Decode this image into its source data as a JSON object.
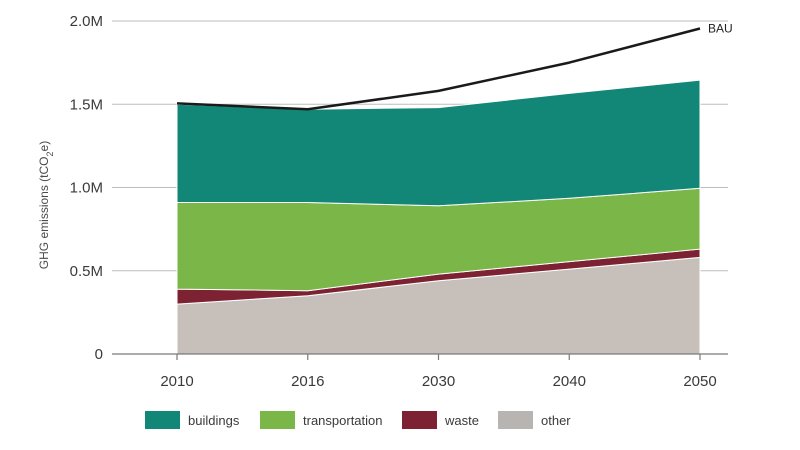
{
  "chart_data": {
    "type": "area",
    "stacked": true,
    "x": [
      "2010",
      "2016",
      "2030",
      "2040",
      "2050"
    ],
    "ylabel_parts": {
      "main": "GHG emissions (tCO",
      "sub": "2",
      "end": "e)"
    },
    "ylim": [
      0,
      2000000
    ],
    "yticks": [
      {
        "value": 0,
        "label": "0"
      },
      {
        "value": 500000,
        "label": "0.5M"
      },
      {
        "value": 1000000,
        "label": "1.0M"
      },
      {
        "value": 1500000,
        "label": "1.5M"
      },
      {
        "value": 2000000,
        "label": "2.0M"
      }
    ],
    "grid": true,
    "legend_position": "bottom",
    "series": [
      {
        "name": "other",
        "values": [
          300000,
          350000,
          440000,
          510000,
          580000
        ],
        "color": "#c7c0ba"
      },
      {
        "name": "waste",
        "values": [
          90000,
          30000,
          40000,
          45000,
          50000
        ],
        "color": "#7c2233"
      },
      {
        "name": "transportation",
        "values": [
          520000,
          530000,
          410000,
          380000,
          365000
        ],
        "color": "#7ab648"
      },
      {
        "name": "buildings",
        "values": [
          590000,
          560000,
          590000,
          630000,
          650000
        ],
        "color": "#128677"
      }
    ],
    "line_series": [
      {
        "name": "BAU",
        "values": [
          1505000,
          1470000,
          1580000,
          1750000,
          1955000
        ],
        "color": "#1a1a1a"
      }
    ],
    "legend": [
      {
        "name": "buildings",
        "color": "#128677"
      },
      {
        "name": "transportation",
        "color": "#7ab648"
      },
      {
        "name": "waste",
        "color": "#7c2233"
      },
      {
        "name": "other",
        "color": "#b7b4b1"
      }
    ]
  }
}
